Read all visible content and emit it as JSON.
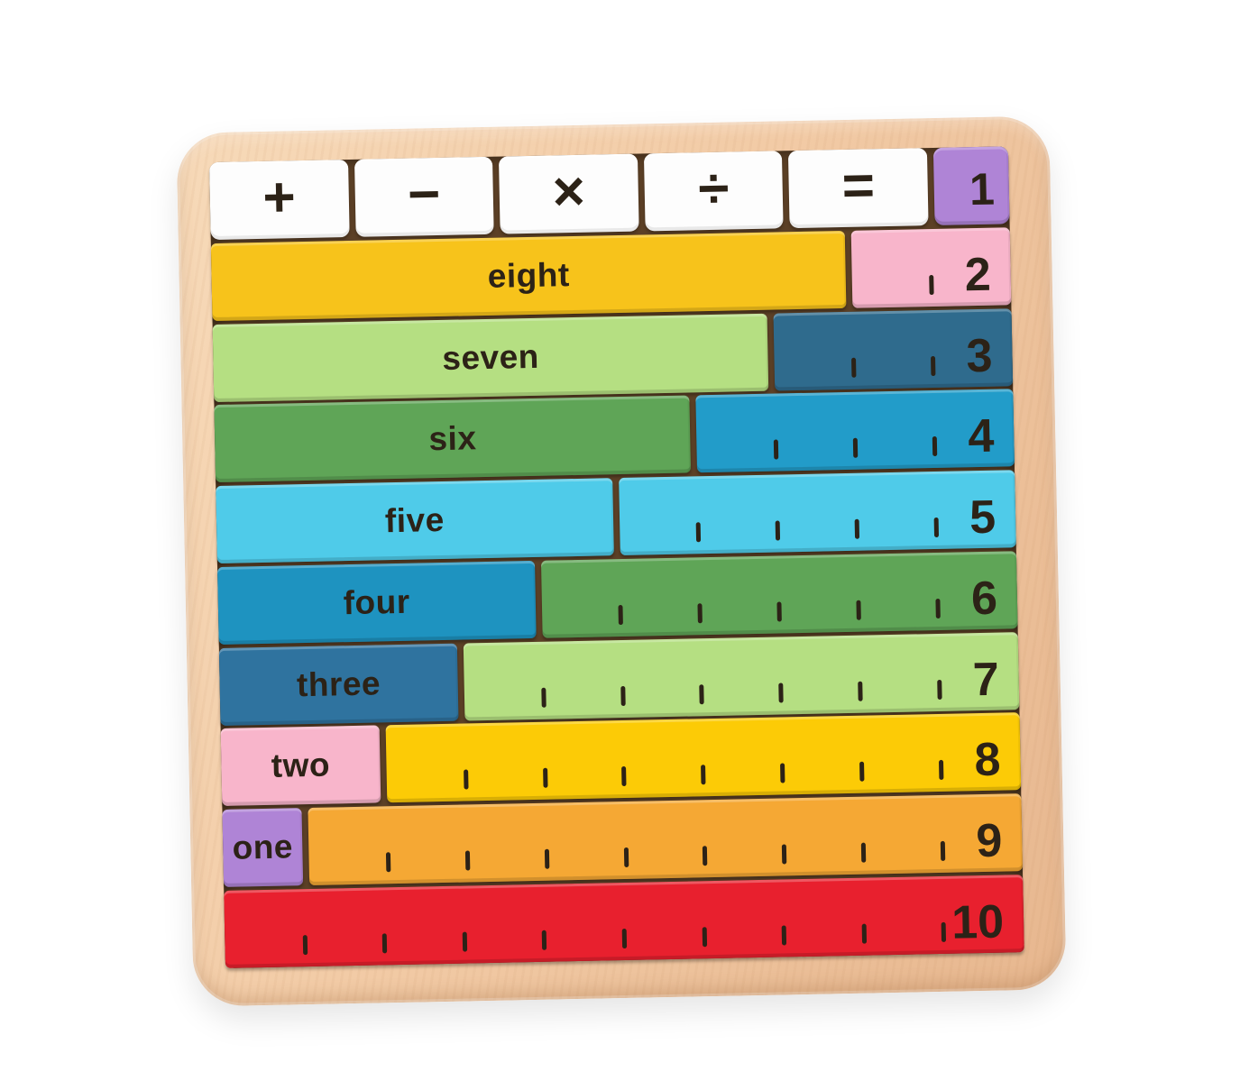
{
  "photo": {
    "background": "#ffffff"
  },
  "board": {
    "wood_light": "#F7DAB9",
    "wood_dark": "#E7B78F",
    "well_color": "#5C4026",
    "ink": "#2C2217"
  },
  "operator_row": {
    "tile_color": "#FDFDFD",
    "operators": [
      {
        "name": "plus",
        "symbol": "+"
      },
      {
        "name": "minus",
        "symbol": "−"
      },
      {
        "name": "multiply",
        "symbol": "×"
      },
      {
        "name": "divide",
        "symbol": "÷"
      },
      {
        "name": "equals",
        "symbol": "="
      }
    ],
    "one_tile": {
      "label": "1",
      "color": "#AF84D6"
    }
  },
  "rows": [
    {
      "word": "eight",
      "word_units": 8,
      "word_color": "#F7C31B",
      "number": "2",
      "number_units": 2,
      "number_color": "#F8B5CB"
    },
    {
      "word": "seven",
      "word_units": 7,
      "word_color": "#B5DF82",
      "number": "3",
      "number_units": 3,
      "number_color": "#2F6B8D"
    },
    {
      "word": "six",
      "word_units": 6,
      "word_color": "#5FA557",
      "number": "4",
      "number_units": 4,
      "number_color": "#229CC9"
    },
    {
      "word": "five",
      "word_units": 5,
      "word_color": "#4FCBE9",
      "number": "5",
      "number_units": 5,
      "number_color": "#4FCBE9"
    },
    {
      "word": "four",
      "word_units": 4,
      "word_color": "#1E93C0",
      "number": "6",
      "number_units": 6,
      "number_color": "#5FA557"
    },
    {
      "word": "three",
      "word_units": 3,
      "word_color": "#2F739F",
      "number": "7",
      "number_units": 7,
      "number_color": "#B5DF82"
    },
    {
      "word": "two",
      "word_units": 2,
      "word_color": "#F8B5CB",
      "number": "8",
      "number_units": 8,
      "number_color": "#FCCB06"
    },
    {
      "word": "one",
      "word_units": 1,
      "word_color": "#AF84D6",
      "number": "9",
      "number_units": 9,
      "number_color": "#F5A834"
    }
  ],
  "full_row": {
    "number": "10",
    "units": 10,
    "color": "#E8202E"
  }
}
